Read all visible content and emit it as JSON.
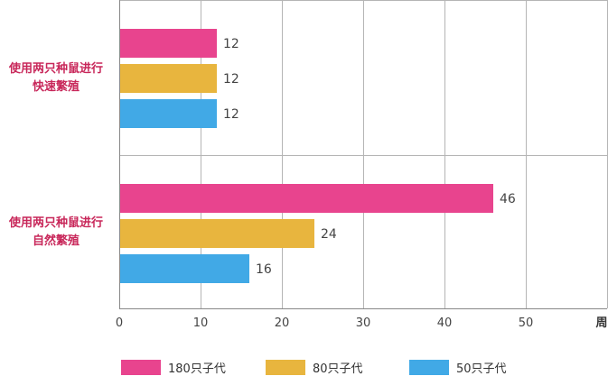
{
  "chart_data": {
    "type": "bar",
    "orientation": "horizontal",
    "categories": [
      {
        "line1": "使用两只种鼠进行",
        "line2": "快速繁殖"
      },
      {
        "line1": "使用两只种鼠进行",
        "line2": "自然繁殖"
      }
    ],
    "series": [
      {
        "name": "180只子代",
        "color": "#e8448e",
        "values": [
          12,
          46
        ]
      },
      {
        "name": "80只子代",
        "color": "#e8b53e",
        "values": [
          12,
          24
        ]
      },
      {
        "name": "50只子代",
        "color": "#41a9e6",
        "values": [
          12,
          16
        ]
      }
    ],
    "x_ticks": [
      0,
      10,
      20,
      30,
      40,
      50
    ],
    "xlim": [
      0,
      60
    ],
    "xlabel": "周",
    "grid": true,
    "data_labels": true,
    "legend_position": "bottom"
  }
}
